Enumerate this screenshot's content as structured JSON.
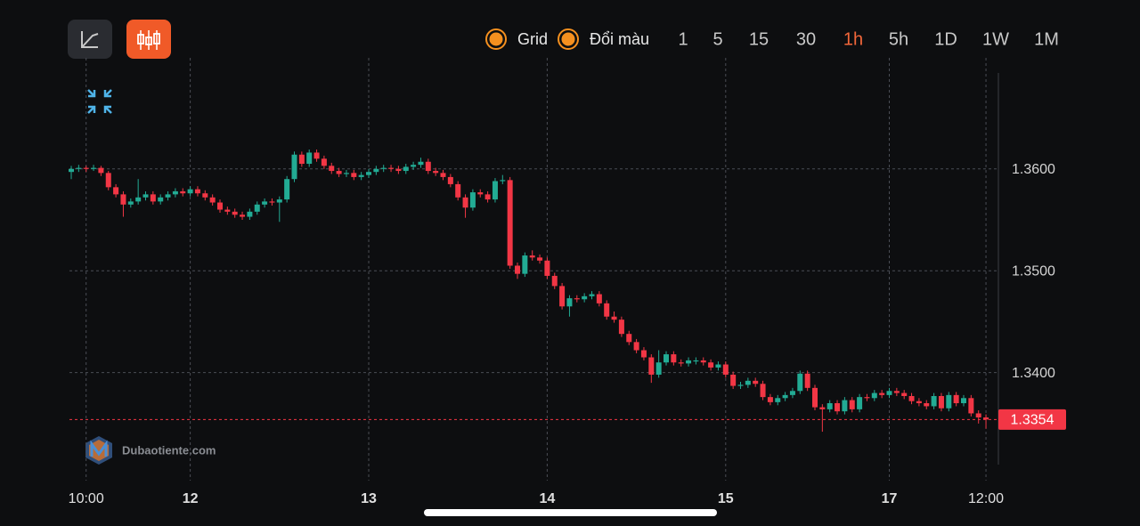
{
  "toolbar": {
    "options": [
      "Grid",
      "Đổi màu"
    ],
    "timeframes": [
      "1",
      "5",
      "15",
      "30",
      "1h",
      "5h",
      "1D",
      "1W",
      "1M"
    ],
    "active_timeframe_index": 4
  },
  "watermark": "Dubaotiente.com",
  "chart_data": {
    "type": "candlestick",
    "candles": [
      [
        1.3597,
        1.3603,
        1.359,
        1.36
      ],
      [
        1.36,
        1.3604,
        1.3597,
        1.3601
      ],
      [
        1.3601,
        1.3603,
        1.3597,
        1.36
      ],
      [
        1.36,
        1.3604,
        1.3598,
        1.3601
      ],
      [
        1.3601,
        1.3603,
        1.3593,
        1.3596
      ],
      [
        1.3596,
        1.3598,
        1.3579,
        1.3582
      ],
      [
        1.3582,
        1.3585,
        1.3572,
        1.3575
      ],
      [
        1.3575,
        1.3578,
        1.3553,
        1.3565
      ],
      [
        1.3565,
        1.3571,
        1.3562,
        1.3568
      ],
      [
        1.3568,
        1.359,
        1.3565,
        1.3572
      ],
      [
        1.3572,
        1.3578,
        1.3569,
        1.3575
      ],
      [
        1.3575,
        1.3578,
        1.3565,
        1.3568
      ],
      [
        1.3568,
        1.3575,
        1.3565,
        1.3572
      ],
      [
        1.3572,
        1.3578,
        1.3569,
        1.3575
      ],
      [
        1.3575,
        1.3581,
        1.3572,
        1.3578
      ],
      [
        1.3578,
        1.3581,
        1.3573,
        1.3576
      ],
      [
        1.3576,
        1.3583,
        1.3573,
        1.358
      ],
      [
        1.358,
        1.3583,
        1.3573,
        1.3576
      ],
      [
        1.3576,
        1.3579,
        1.3569,
        1.3572
      ],
      [
        1.3572,
        1.3575,
        1.3564,
        1.3567
      ],
      [
        1.3567,
        1.357,
        1.3557,
        1.356
      ],
      [
        1.356,
        1.3563,
        1.3555,
        1.3558
      ],
      [
        1.3558,
        1.3561,
        1.3552,
        1.3555
      ],
      [
        1.3555,
        1.3558,
        1.355,
        1.3553
      ],
      [
        1.3553,
        1.3561,
        1.355,
        1.3558
      ],
      [
        1.3558,
        1.3568,
        1.3555,
        1.3565
      ],
      [
        1.3565,
        1.3571,
        1.3562,
        1.3568
      ],
      [
        1.3568,
        1.3571,
        1.3564,
        1.3567
      ],
      [
        1.3567,
        1.3573,
        1.3548,
        1.357
      ],
      [
        1.357,
        1.3593,
        1.3567,
        1.359
      ],
      [
        1.359,
        1.3617,
        1.3587,
        1.3614
      ],
      [
        1.3614,
        1.3617,
        1.3602,
        1.3605
      ],
      [
        1.3605,
        1.3619,
        1.3602,
        1.3616
      ],
      [
        1.3616,
        1.3619,
        1.3607,
        1.361
      ],
      [
        1.361,
        1.3613,
        1.36,
        1.3603
      ],
      [
        1.3603,
        1.3606,
        1.3595,
        1.3598
      ],
      [
        1.3598,
        1.3601,
        1.3592,
        1.3595
      ],
      [
        1.3595,
        1.3599,
        1.3592,
        1.3596
      ],
      [
        1.3596,
        1.3599,
        1.3589,
        1.3592
      ],
      [
        1.3592,
        1.3597,
        1.3589,
        1.3594
      ],
      [
        1.3594,
        1.36,
        1.3591,
        1.3597
      ],
      [
        1.3597,
        1.3603,
        1.3594,
        1.36
      ],
      [
        1.36,
        1.3604,
        1.3597,
        1.3601
      ],
      [
        1.3601,
        1.3604,
        1.3597,
        1.36
      ],
      [
        1.36,
        1.3603,
        1.3595,
        1.3598
      ],
      [
        1.3598,
        1.3605,
        1.3595,
        1.3602
      ],
      [
        1.3602,
        1.3607,
        1.3599,
        1.3604
      ],
      [
        1.3604,
        1.3611,
        1.3601,
        1.3607
      ],
      [
        1.3607,
        1.361,
        1.3595,
        1.3598
      ],
      [
        1.3598,
        1.3601,
        1.3593,
        1.3596
      ],
      [
        1.3596,
        1.3599,
        1.3589,
        1.3592
      ],
      [
        1.3592,
        1.3595,
        1.3582,
        1.3585
      ],
      [
        1.3585,
        1.3588,
        1.3569,
        1.3572
      ],
      [
        1.3572,
        1.3575,
        1.3552,
        1.3562
      ],
      [
        1.3562,
        1.358,
        1.3559,
        1.3577
      ],
      [
        1.3577,
        1.358,
        1.3572,
        1.3575
      ],
      [
        1.3575,
        1.3578,
        1.3567,
        1.357
      ],
      [
        1.357,
        1.3591,
        1.3567,
        1.3588
      ],
      [
        1.3588,
        1.3594,
        1.3585,
        1.3589
      ],
      [
        1.3589,
        1.3592,
        1.3502,
        1.3505
      ],
      [
        1.3505,
        1.3508,
        1.3492,
        1.3497
      ],
      [
        1.3497,
        1.3518,
        1.3494,
        1.3515
      ],
      [
        1.3515,
        1.352,
        1.351,
        1.3513
      ],
      [
        1.3513,
        1.3516,
        1.3507,
        1.351
      ],
      [
        1.351,
        1.3513,
        1.3492,
        1.3495
      ],
      [
        1.3495,
        1.3498,
        1.3482,
        1.3485
      ],
      [
        1.3485,
        1.3488,
        1.3462,
        1.3465
      ],
      [
        1.3465,
        1.3476,
        1.3455,
        1.3473
      ],
      [
        1.3473,
        1.3476,
        1.3469,
        1.3472
      ],
      [
        1.3472,
        1.3478,
        1.3469,
        1.3475
      ],
      [
        1.3475,
        1.348,
        1.3472,
        1.3477
      ],
      [
        1.3477,
        1.348,
        1.3465,
        1.3468
      ],
      [
        1.3468,
        1.3471,
        1.3452,
        1.3455
      ],
      [
        1.3455,
        1.346,
        1.3449,
        1.3452
      ],
      [
        1.3452,
        1.3455,
        1.3435,
        1.3438
      ],
      [
        1.3438,
        1.3441,
        1.3427,
        1.343
      ],
      [
        1.343,
        1.3433,
        1.3419,
        1.3422
      ],
      [
        1.3422,
        1.3425,
        1.3412,
        1.3415
      ],
      [
        1.3415,
        1.3418,
        1.339,
        1.3398
      ],
      [
        1.3398,
        1.3422,
        1.3395,
        1.341
      ],
      [
        1.341,
        1.3421,
        1.3407,
        1.3418
      ],
      [
        1.3418,
        1.3421,
        1.3407,
        1.341
      ],
      [
        1.341,
        1.3413,
        1.3406,
        1.3409
      ],
      [
        1.3409,
        1.3415,
        1.3406,
        1.3412
      ],
      [
        1.3412,
        1.3415,
        1.3408,
        1.3412
      ],
      [
        1.3412,
        1.3415,
        1.3407,
        1.341
      ],
      [
        1.341,
        1.3413,
        1.3402,
        1.3405
      ],
      [
        1.3405,
        1.3411,
        1.3402,
        1.3408
      ],
      [
        1.3408,
        1.3411,
        1.3395,
        1.3398
      ],
      [
        1.3398,
        1.3401,
        1.3384,
        1.3387
      ],
      [
        1.3387,
        1.3391,
        1.3384,
        1.3388
      ],
      [
        1.3388,
        1.3395,
        1.3385,
        1.3392
      ],
      [
        1.3392,
        1.3395,
        1.3386,
        1.3389
      ],
      [
        1.3389,
        1.3392,
        1.3373,
        1.3376
      ],
      [
        1.3376,
        1.3379,
        1.3368,
        1.3371
      ],
      [
        1.3371,
        1.3378,
        1.3368,
        1.3375
      ],
      [
        1.3375,
        1.3381,
        1.3372,
        1.3378
      ],
      [
        1.3378,
        1.3385,
        1.3375,
        1.3382
      ],
      [
        1.3382,
        1.3402,
        1.3379,
        1.3399
      ],
      [
        1.3399,
        1.3402,
        1.3382,
        1.3385
      ],
      [
        1.3385,
        1.3388,
        1.3363,
        1.3366
      ],
      [
        1.3366,
        1.3369,
        1.3342,
        1.3364
      ],
      [
        1.3364,
        1.3373,
        1.3361,
        1.337
      ],
      [
        1.337,
        1.3373,
        1.3359,
        1.3362
      ],
      [
        1.3362,
        1.3376,
        1.3359,
        1.3373
      ],
      [
        1.3373,
        1.3376,
        1.3361,
        1.3364
      ],
      [
        1.3364,
        1.3379,
        1.3361,
        1.3376
      ],
      [
        1.3376,
        1.3379,
        1.3372,
        1.3375
      ],
      [
        1.3375,
        1.3383,
        1.3372,
        1.338
      ],
      [
        1.338,
        1.3383,
        1.3375,
        1.3378
      ],
      [
        1.3378,
        1.3385,
        1.3375,
        1.3382
      ],
      [
        1.3382,
        1.3385,
        1.3377,
        1.338
      ],
      [
        1.338,
        1.3383,
        1.3374,
        1.3377
      ],
      [
        1.3377,
        1.338,
        1.3369,
        1.3372
      ],
      [
        1.3372,
        1.3375,
        1.3367,
        1.337
      ],
      [
        1.337,
        1.3373,
        1.3364,
        1.3367
      ],
      [
        1.3367,
        1.338,
        1.3364,
        1.3377
      ],
      [
        1.3377,
        1.338,
        1.3362,
        1.3365
      ],
      [
        1.3365,
        1.3381,
        1.3362,
        1.3378
      ],
      [
        1.3378,
        1.3381,
        1.3367,
        1.337
      ],
      [
        1.337,
        1.3378,
        1.3367,
        1.3375
      ],
      [
        1.3375,
        1.3378,
        1.3357,
        1.336
      ],
      [
        1.336,
        1.3363,
        1.335,
        1.3356
      ],
      [
        1.3356,
        1.3359,
        1.3345,
        1.3354
      ]
    ],
    "categories": [
      null,
      null,
      "10:00",
      null,
      null,
      null,
      null,
      null,
      null,
      null,
      null,
      null,
      null,
      null,
      null,
      null,
      "12",
      null,
      null,
      null,
      null,
      null,
      null,
      null,
      null,
      null,
      null,
      null,
      null,
      null,
      null,
      null,
      null,
      null,
      null,
      null,
      null,
      null,
      null,
      null,
      "13",
      null,
      null,
      null,
      null,
      null,
      null,
      null,
      null,
      null,
      null,
      null,
      null,
      null,
      null,
      null,
      null,
      null,
      null,
      null,
      null,
      null,
      null,
      null,
      "14",
      null,
      null,
      null,
      null,
      null,
      null,
      null,
      null,
      null,
      null,
      null,
      null,
      null,
      null,
      null,
      null,
      null,
      null,
      null,
      null,
      null,
      null,
      null,
      "15",
      null,
      null,
      null,
      null,
      null,
      null,
      null,
      null,
      null,
      null,
      null,
      null,
      null,
      null,
      null,
      null,
      null,
      null,
      null,
      null,
      null,
      "17",
      null,
      null,
      null,
      null,
      null,
      null,
      null,
      null,
      null,
      null,
      null,
      null,
      "12:00"
    ],
    "ylim": [
      1.3294,
      1.3709
    ],
    "yticks": [
      {
        "value": 1.34,
        "label": "1.3400"
      },
      {
        "value": 1.35,
        "label": "1.3500"
      },
      {
        "value": 1.36,
        "label": "1.3600"
      }
    ],
    "grid": true,
    "up_color": "#22ab94",
    "down_color": "#f23645",
    "last_price": 1.3354,
    "last_price_color": "#f23645"
  }
}
